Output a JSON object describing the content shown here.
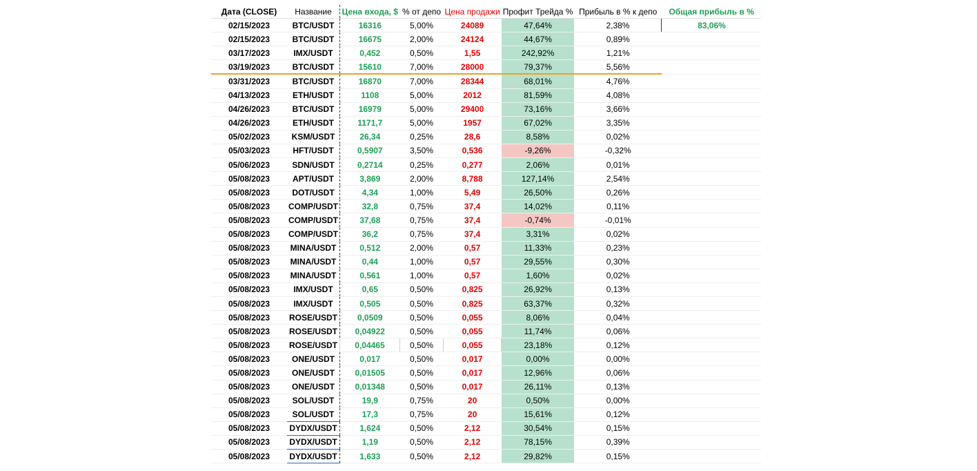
{
  "columns": {
    "date": "Дата (CLOSE)",
    "name": "Название",
    "entry": "Цена входа, $",
    "pct": "% от депо",
    "sell": "Цена продажи",
    "profit": "Профит Трейда %",
    "dep": "Прибыль в % к депо",
    "total": "Общая прибыль в %"
  },
  "total_profit": "83,06%",
  "rows": [
    {
      "date": "02/15/2023",
      "name": "BTC/USDT",
      "entry": "16316",
      "pct": "5,00%",
      "sell": "24089",
      "profit": "47,64%",
      "dep": "2,38%"
    },
    {
      "date": "02/15/2023",
      "name": "BTC/USDT",
      "entry": "16675",
      "pct": "2,00%",
      "sell": "24124",
      "profit": "44,67%",
      "dep": "0,89%"
    },
    {
      "date": "03/17/2023",
      "name": "IMX/USDT",
      "entry": "0,452",
      "pct": "0,50%",
      "sell": "1,55",
      "profit": "242,92%",
      "dep": "1,21%"
    },
    {
      "date": "03/19/2023",
      "name": "BTC/USDT",
      "entry": "15610",
      "pct": "7,00%",
      "sell": "28000",
      "profit": "79,37%",
      "dep": "5,56%"
    },
    {
      "date": "03/31/2023",
      "name": "BTC/USDT",
      "entry": "16870",
      "pct": "7,00%",
      "sell": "28344",
      "profit": "68,01%",
      "dep": "4,76%"
    },
    {
      "date": "04/13/2023",
      "name": "ETH/USDT",
      "entry": "1108",
      "pct": "5,00%",
      "sell": "2012",
      "profit": "81,59%",
      "dep": "4,08%"
    },
    {
      "date": "04/26/2023",
      "name": "BTC/USDT",
      "entry": "16979",
      "pct": "5,00%",
      "sell": "29400",
      "profit": "73,16%",
      "dep": "3,66%"
    },
    {
      "date": "04/26/2023",
      "name": "ETH/USDT",
      "entry": "1171,7",
      "pct": "5,00%",
      "sell": "1957",
      "profit": "67,02%",
      "dep": "3,35%"
    },
    {
      "date": "05/02/2023",
      "name": "KSM/USDT",
      "entry": "26,34",
      "pct": "0,25%",
      "sell": "28,6",
      "profit": "8,58%",
      "dep": "0,02%"
    },
    {
      "date": "05/03/2023",
      "name": "HFT/USDT",
      "entry": "0,5907",
      "pct": "3,50%",
      "sell": "0,536",
      "profit": "-9,26%",
      "dep": "-0,32%"
    },
    {
      "date": "05/06/2023",
      "name": "SDN/USDT",
      "entry": "0,2714",
      "pct": "0,25%",
      "sell": "0,277",
      "profit": "2,06%",
      "dep": "0,01%"
    },
    {
      "date": "05/08/2023",
      "name": "APT/USDT",
      "entry": "3,869",
      "pct": "2,00%",
      "sell": "8,788",
      "profit": "127,14%",
      "dep": "2,54%"
    },
    {
      "date": "05/08/2023",
      "name": "DOT/USDT",
      "entry": "4,34",
      "pct": "1,00%",
      "sell": "5,49",
      "profit": "26,50%",
      "dep": "0,26%"
    },
    {
      "date": "05/08/2023",
      "name": "COMP/USDT",
      "entry": "32,8",
      "pct": "0,75%",
      "sell": "37,4",
      "profit": "14,02%",
      "dep": "0,11%"
    },
    {
      "date": "05/08/2023",
      "name": "COMP/USDT",
      "entry": "37,68",
      "pct": "0,75%",
      "sell": "37,4",
      "profit": "-0,74%",
      "dep": "-0,01%"
    },
    {
      "date": "05/08/2023",
      "name": "COMP/USDT",
      "entry": "36,2",
      "pct": "0,75%",
      "sell": "37,4",
      "profit": "3,31%",
      "dep": "0,02%"
    },
    {
      "date": "05/08/2023",
      "name": "MINA/USDT",
      "entry": "0,512",
      "pct": "2,00%",
      "sell": "0,57",
      "profit": "11,33%",
      "dep": "0,23%"
    },
    {
      "date": "05/08/2023",
      "name": "MINA/USDT",
      "entry": "0,44",
      "pct": "1,00%",
      "sell": "0,57",
      "profit": "29,55%",
      "dep": "0,30%"
    },
    {
      "date": "05/08/2023",
      "name": "MINA/USDT",
      "entry": "0,561",
      "pct": "1,00%",
      "sell": "0,57",
      "profit": "1,60%",
      "dep": "0,02%"
    },
    {
      "date": "05/08/2023",
      "name": "IMX/USDT",
      "entry": "0,65",
      "pct": "0,50%",
      "sell": "0,825",
      "profit": "26,92%",
      "dep": "0,13%"
    },
    {
      "date": "05/08/2023",
      "name": "IMX/USDT",
      "entry": "0,505",
      "pct": "0,50%",
      "sell": "0,825",
      "profit": "63,37%",
      "dep": "0,32%"
    },
    {
      "date": "05/08/2023",
      "name": "ROSE/USDT",
      "entry": "0,0509",
      "pct": "0,50%",
      "sell": "0,055",
      "profit": "8,06%",
      "dep": "0,04%"
    },
    {
      "date": "05/08/2023",
      "name": "ROSE/USDT",
      "entry": "0,04922",
      "pct": "0,50%",
      "sell": "0,055",
      "profit": "11,74%",
      "dep": "0,06%"
    },
    {
      "date": "05/08/2023",
      "name": "ROSE/USDT",
      "entry": "0,04465",
      "pct": "0,50%",
      "sell": "0,055",
      "profit": "23,18%",
      "dep": "0,12%"
    },
    {
      "date": "05/08/2023",
      "name": "ONE/USDT",
      "entry": "0,017",
      "pct": "0,50%",
      "sell": "0,017",
      "profit": "0,00%",
      "dep": "0,00%"
    },
    {
      "date": "05/08/2023",
      "name": "ONE/USDT",
      "entry": "0,01505",
      "pct": "0,50%",
      "sell": "0,017",
      "profit": "12,96%",
      "dep": "0,06%"
    },
    {
      "date": "05/08/2023",
      "name": "ONE/USDT",
      "entry": "0,01348",
      "pct": "0,50%",
      "sell": "0,017",
      "profit": "26,11%",
      "dep": "0,13%"
    },
    {
      "date": "05/08/2023",
      "name": "SOL/USDT",
      "entry": "19,9",
      "pct": "0,75%",
      "sell": "20",
      "profit": "0,50%",
      "dep": "0,00%"
    },
    {
      "date": "05/08/2023",
      "name": "SOL/USDT",
      "entry": "17,3",
      "pct": "0,75%",
      "sell": "20",
      "profit": "15,61%",
      "dep": "0,12%"
    },
    {
      "date": "05/08/2023",
      "name": "DYDX/USDT",
      "entry": "1,624",
      "pct": "0,50%",
      "sell": "2,12",
      "profit": "30,54%",
      "dep": "0,15%"
    },
    {
      "date": "05/08/2023",
      "name": "DYDX/USDT",
      "entry": "1,19",
      "pct": "0,50%",
      "sell": "2,12",
      "profit": "78,15%",
      "dep": "0,39%"
    },
    {
      "date": "05/08/2023",
      "name": "DYDX/USDT",
      "entry": "1,633",
      "pct": "0,50%",
      "sell": "2,12",
      "profit": "29,82%",
      "dep": "0,15%"
    }
  ]
}
